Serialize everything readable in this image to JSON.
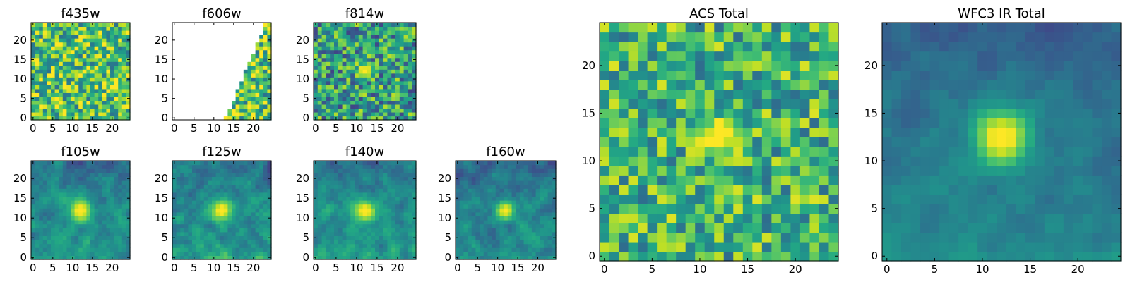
{
  "chart_data": [
    {
      "type": "heatmap",
      "title": "f435w",
      "image_size": 25,
      "colormap": "viridis",
      "xlim": [
        0,
        24
      ],
      "ylim": [
        0,
        24
      ],
      "xticks": [
        0,
        5,
        10,
        15,
        20
      ],
      "yticks": [
        0,
        5,
        10,
        15,
        20
      ],
      "xtick_labels": [
        "0",
        "5",
        "10",
        "15",
        "20"
      ],
      "ytick_labels": [
        "0",
        "5",
        "10",
        "15",
        "20"
      ],
      "pattern": "noise",
      "base": 0.72,
      "noise": 0.35,
      "seed": 11,
      "source": null,
      "coverage": null
    },
    {
      "type": "heatmap",
      "title": "f606w",
      "image_size": 25,
      "colormap": "viridis",
      "xlim": [
        0,
        24
      ],
      "ylim": [
        0,
        24
      ],
      "xticks": [
        0,
        5,
        10,
        15,
        20
      ],
      "yticks": [
        0,
        5,
        10,
        15,
        20
      ],
      "xtick_labels": [
        "0",
        "5",
        "10",
        "15",
        "20"
      ],
      "ytick_labels": [
        "0",
        "5",
        "10",
        "15",
        "20"
      ],
      "pattern": "partial_coverage",
      "base": 0.72,
      "noise": 0.35,
      "seed": 23,
      "source": null,
      "coverage": {
        "x_at_bottom": 13,
        "x_at_top": 23
      }
    },
    {
      "type": "heatmap",
      "title": "f814w",
      "image_size": 25,
      "colormap": "viridis",
      "xlim": [
        0,
        24
      ],
      "ylim": [
        0,
        24
      ],
      "xticks": [
        0,
        5,
        10,
        15,
        20
      ],
      "yticks": [
        0,
        5,
        10,
        15,
        20
      ],
      "xtick_labels": [
        "0",
        "5",
        "10",
        "15",
        "20"
      ],
      "ytick_labels": [
        "0",
        "5",
        "10",
        "15",
        "20"
      ],
      "pattern": "noise_with_source",
      "base": 0.55,
      "noise": 0.35,
      "seed": 37,
      "source": {
        "x": 12.5,
        "y": 12.5,
        "peak": 0.95,
        "sigma": 1.3
      },
      "coverage": null
    },
    {
      "type": "heatmap",
      "title": "f105w",
      "image_size": 25,
      "colormap": "viridis",
      "xlim": [
        0,
        24
      ],
      "ylim": [
        0,
        24
      ],
      "xticks": [
        0,
        5,
        10,
        15,
        20
      ],
      "yticks": [
        0,
        5,
        10,
        15,
        20
      ],
      "xtick_labels": [
        "0",
        "5",
        "10",
        "15",
        "20"
      ],
      "ytick_labels": [
        "0",
        "5",
        "10",
        "15",
        "20"
      ],
      "pattern": "smooth_with_source",
      "base": 0.48,
      "noise": 0.18,
      "seed": 41,
      "source": {
        "x": 12.5,
        "y": 12.5,
        "peak": 0.95,
        "sigma": 2.0
      },
      "coverage": null
    },
    {
      "type": "heatmap",
      "title": "f125w",
      "image_size": 25,
      "colormap": "viridis",
      "xlim": [
        0,
        24
      ],
      "ylim": [
        0,
        24
      ],
      "xticks": [
        0,
        5,
        10,
        15,
        20
      ],
      "yticks": [
        0,
        5,
        10,
        15,
        20
      ],
      "xtick_labels": [
        "0",
        "5",
        "10",
        "15",
        "20"
      ],
      "ytick_labels": [
        "0",
        "5",
        "10",
        "15",
        "20"
      ],
      "pattern": "smooth_with_source",
      "base": 0.5,
      "noise": 0.2,
      "seed": 53,
      "source": {
        "x": 12.5,
        "y": 12.5,
        "peak": 0.95,
        "sigma": 1.8
      },
      "coverage": null
    },
    {
      "type": "heatmap",
      "title": "f140w",
      "image_size": 25,
      "colormap": "viridis",
      "xlim": [
        0,
        24
      ],
      "ylim": [
        0,
        24
      ],
      "xticks": [
        0,
        5,
        10,
        15,
        20
      ],
      "yticks": [
        0,
        5,
        10,
        15,
        20
      ],
      "xtick_labels": [
        "0",
        "5",
        "10",
        "15",
        "20"
      ],
      "ytick_labels": [
        "0",
        "5",
        "10",
        "15",
        "20"
      ],
      "pattern": "smooth_with_source",
      "base": 0.5,
      "noise": 0.18,
      "seed": 67,
      "source": {
        "x": 12.5,
        "y": 12.5,
        "peak": 0.95,
        "sigma": 1.8
      },
      "coverage": null
    },
    {
      "type": "heatmap",
      "title": "f160w",
      "image_size": 25,
      "colormap": "viridis",
      "xlim": [
        0,
        24
      ],
      "ylim": [
        0,
        24
      ],
      "xticks": [
        0,
        5,
        10,
        15,
        20
      ],
      "yticks": [
        0,
        5,
        10,
        15,
        20
      ],
      "xtick_labels": [
        "0",
        "5",
        "10",
        "15",
        "20"
      ],
      "ytick_labels": [
        "0",
        "5",
        "10",
        "15",
        "20"
      ],
      "pattern": "smooth_with_source",
      "base": 0.45,
      "noise": 0.18,
      "seed": 79,
      "source": {
        "x": 12.5,
        "y": 12.5,
        "peak": 0.95,
        "sigma": 1.6
      },
      "coverage": null
    },
    {
      "type": "heatmap",
      "title": "ACS Total",
      "image_size": 25,
      "colormap": "viridis",
      "xlim": [
        0,
        24
      ],
      "ylim": [
        0,
        24
      ],
      "xticks": [
        0,
        5,
        10,
        15,
        20
      ],
      "yticks": [
        0,
        5,
        10,
        15,
        20
      ],
      "xtick_labels": [
        "0",
        "5",
        "10",
        "15",
        "20"
      ],
      "ytick_labels": [
        "0",
        "5",
        "10",
        "15",
        "20"
      ],
      "pattern": "noise_with_source",
      "base": 0.65,
      "noise": 0.3,
      "seed": 97,
      "source": {
        "x": 12.5,
        "y": 13.0,
        "peak": 0.98,
        "sigma": 1.4
      },
      "coverage": null
    },
    {
      "type": "heatmap",
      "title": "WFC3 IR Total",
      "image_size": 25,
      "colormap": "viridis",
      "xlim": [
        0,
        24
      ],
      "ylim": [
        0,
        24
      ],
      "xticks": [
        0,
        5,
        10,
        15,
        20
      ],
      "yticks": [
        0,
        5,
        10,
        15,
        20
      ],
      "xtick_labels": [
        "0",
        "5",
        "10",
        "15",
        "20"
      ],
      "ytick_labels": [
        "0",
        "5",
        "10",
        "15",
        "20"
      ],
      "pattern": "smooth_with_source",
      "base": 0.42,
      "noise": 0.1,
      "seed": 113,
      "source": {
        "x": 12.5,
        "y": 13.0,
        "peak": 0.98,
        "sigma": 2.0
      },
      "coverage": null
    }
  ]
}
